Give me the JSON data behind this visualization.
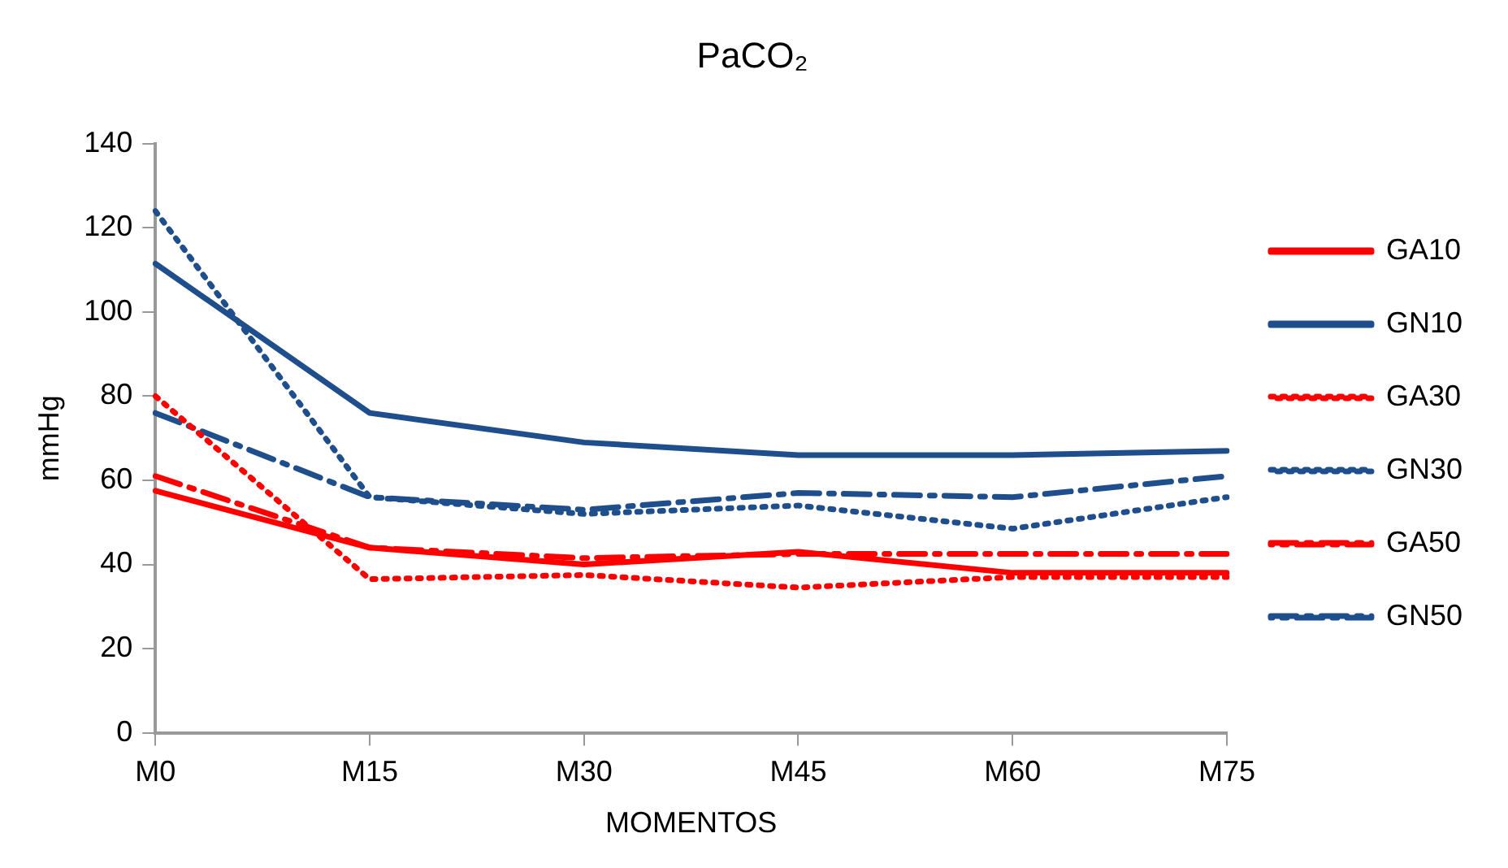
{
  "chart_data": {
    "type": "line",
    "title": "PaCO₂",
    "xlabel": "MOMENTOS",
    "ylabel": "mmHg",
    "categories": [
      "M0",
      "M15",
      "M30",
      "M45",
      "M60",
      "M75"
    ],
    "ylim": [
      0,
      140
    ],
    "yticks": [
      0,
      20,
      40,
      60,
      80,
      100,
      120,
      140
    ],
    "grid": false,
    "legend": "right",
    "marker": "none",
    "series": [
      {
        "name": "GA10",
        "color": "#ff0000",
        "line_style": "solid",
        "values": [
          57.5,
          44,
          40,
          43,
          38,
          38
        ]
      },
      {
        "name": "GN10",
        "color": "#1f4e8c",
        "line_style": "solid",
        "values": [
          111.5,
          76,
          69,
          66,
          66,
          67
        ]
      },
      {
        "name": "GA30",
        "color": "#ff0000",
        "line_style": "dotted",
        "values": [
          80,
          36.5,
          37.5,
          34.5,
          37,
          37
        ]
      },
      {
        "name": "GN30",
        "color": "#1f4e8c",
        "line_style": "dotted",
        "values": [
          124,
          56,
          52,
          54,
          48.5,
          56
        ]
      },
      {
        "name": "GA50",
        "color": "#ff0000",
        "line_style": "dashed",
        "values": [
          61,
          44,
          41.5,
          42.5,
          42.5,
          42.5
        ]
      },
      {
        "name": "GN50",
        "color": "#1f4e8c",
        "line_style": "dashed",
        "values": [
          76,
          56,
          53,
          57,
          56,
          61
        ]
      }
    ]
  }
}
